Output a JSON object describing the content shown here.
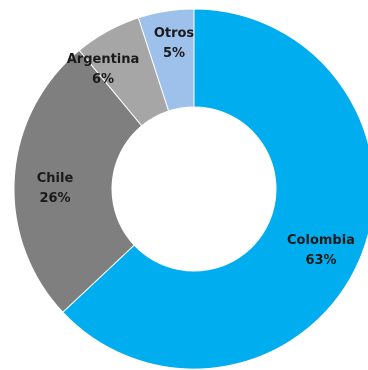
{
  "chart_data": {
    "type": "pie",
    "donut": true,
    "slices": [
      {
        "label": "Colombia",
        "value": 63,
        "value_label": "63%",
        "color": "#00adef"
      },
      {
        "label": "Chile",
        "value": 26,
        "value_label": "26%",
        "color": "#7f7f7f"
      },
      {
        "label": "Argentina",
        "value": 6,
        "value_label": "6%",
        "color": "#a6a6a6"
      },
      {
        "label": "Otros",
        "value": 5,
        "value_label": "5%",
        "color": "#9ec1ec"
      }
    ]
  }
}
